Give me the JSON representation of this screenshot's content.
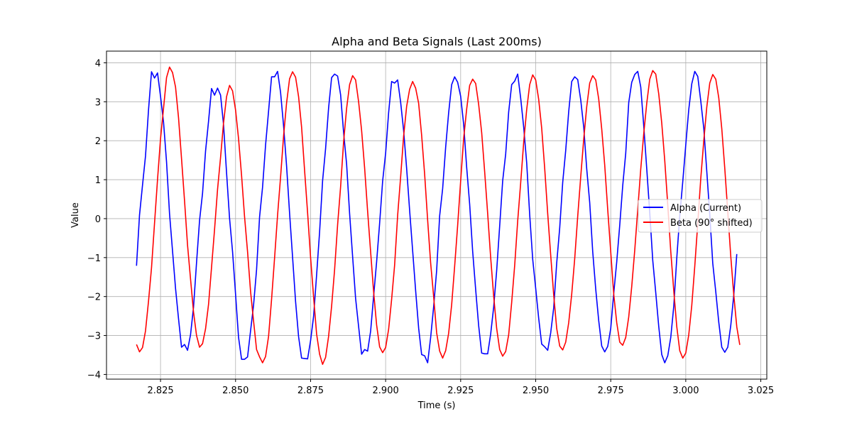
{
  "chart_data": {
    "type": "line",
    "title": "Alpha and Beta Signals (Last 200ms)",
    "xlabel": "Time (s)",
    "ylabel": "Value",
    "xlim": [
      2.807,
      3.027
    ],
    "ylim": [
      -4.12,
      4.3
    ],
    "xticks": [
      2.825,
      2.85,
      2.875,
      2.9,
      2.925,
      2.95,
      2.975,
      3.0,
      3.025
    ],
    "xtick_labels": [
      "2.825",
      "2.850",
      "2.875",
      "2.900",
      "2.925",
      "2.950",
      "2.975",
      "3.000",
      "3.025"
    ],
    "yticks": [
      -4,
      -3,
      -2,
      -1,
      0,
      1,
      2,
      3,
      4
    ],
    "ytick_labels": [
      "−4",
      "−3",
      "−2",
      "−1",
      "0",
      "1",
      "2",
      "3",
      "4"
    ],
    "grid": true,
    "legend_position": "center-right",
    "x_start": 2.817,
    "x_step": 0.001,
    "series": [
      {
        "name": "Alpha (Current)",
        "color": "#0000ff",
        "values": [
          -1.21,
          0.09,
          0.86,
          1.61,
          2.79,
          3.77,
          3.61,
          3.74,
          3.14,
          2.48,
          1.46,
          0.13,
          -0.83,
          -1.79,
          -2.57,
          -3.3,
          -3.23,
          -3.38,
          -2.98,
          -2.27,
          -1.13,
          -0.05,
          0.65,
          1.73,
          2.5,
          3.34,
          3.17,
          3.35,
          3.17,
          2.41,
          1.18,
          0.01,
          -0.85,
          -1.94,
          -3.05,
          -3.61,
          -3.61,
          -3.55,
          -2.88,
          -2.22,
          -1.31,
          0.04,
          0.81,
          1.89,
          2.76,
          3.64,
          3.64,
          3.78,
          3.24,
          2.38,
          1.35,
          0.14,
          -0.99,
          -2.13,
          -3.03,
          -3.58,
          -3.59,
          -3.6,
          -3.13,
          -2.51,
          -1.45,
          -0.34,
          0.97,
          1.8,
          2.84,
          3.62,
          3.71,
          3.66,
          3.18,
          2.21,
          1.4,
          0.13,
          -0.97,
          -2.05,
          -2.77,
          -3.48,
          -3.36,
          -3.4,
          -2.89,
          -1.99,
          -1.11,
          -0.12,
          0.96,
          1.68,
          2.72,
          3.52,
          3.48,
          3.56,
          2.99,
          2.26,
          1.29,
          0.21,
          -0.82,
          -1.85,
          -2.81,
          -3.49,
          -3.52,
          -3.7,
          -3.05,
          -2.26,
          -1.33,
          0.07,
          0.77,
          1.83,
          2.72,
          3.44,
          3.64,
          3.5,
          3.14,
          2.42,
          1.32,
          0.37,
          -0.84,
          -1.82,
          -2.75,
          -3.45,
          -3.47,
          -3.47,
          -2.96,
          -2.27,
          -1.33,
          -0.19,
          0.97,
          1.66,
          2.74,
          3.44,
          3.53,
          3.71,
          3.09,
          2.35,
          1.43,
          0.1,
          -1.04,
          -1.79,
          -2.56,
          -3.22,
          -3.29,
          -3.38,
          -2.93,
          -2.29,
          -1.14,
          -0.24,
          0.93,
          1.75,
          2.75,
          3.52,
          3.64,
          3.57,
          3.05,
          2.35,
          1.28,
          0.41,
          -0.85,
          -1.81,
          -2.62,
          -3.27,
          -3.42,
          -3.28,
          -2.82,
          -1.92,
          -1.11,
          -0.17,
          0.85,
          1.68,
          2.98,
          3.5,
          3.7,
          3.78,
          3.38,
          2.38,
          1.28,
          0.15,
          -1.07,
          -1.9,
          -2.77,
          -3.49,
          -3.7,
          -3.52,
          -3.05,
          -2.25,
          -1.02,
          0.07,
          0.95,
          1.89,
          2.8,
          3.46,
          3.78,
          3.65,
          3.02,
          2.32,
          1.22,
          0.1,
          -1.15,
          -1.88,
          -2.66,
          -3.3,
          -3.43,
          -3.3,
          -2.74,
          -1.96,
          -0.91
        ]
      },
      {
        "name": "Beta (90° shifted)",
        "color": "#ff0000",
        "values": [
          -3.23,
          -3.42,
          -3.31,
          -2.88,
          -2.12,
          -1.26,
          -0.12,
          1.0,
          2.05,
          2.83,
          3.62,
          3.89,
          3.75,
          3.38,
          2.59,
          1.54,
          0.46,
          -0.68,
          -1.55,
          -2.4,
          -3.0,
          -3.3,
          -3.21,
          -2.83,
          -2.2,
          -1.25,
          -0.28,
          0.75,
          1.57,
          2.46,
          3.13,
          3.42,
          3.28,
          2.79,
          2.05,
          1.11,
          0.05,
          -0.85,
          -1.87,
          -2.63,
          -3.36,
          -3.55,
          -3.7,
          -3.54,
          -3.02,
          -2.07,
          -1.01,
          0.09,
          1.07,
          2.12,
          2.97,
          3.59,
          3.77,
          3.63,
          3.13,
          2.35,
          1.24,
          0.15,
          -1.0,
          -2.01,
          -2.96,
          -3.48,
          -3.74,
          -3.56,
          -3.02,
          -2.25,
          -1.31,
          -0.16,
          0.82,
          1.97,
          2.83,
          3.44,
          3.67,
          3.56,
          3.0,
          2.26,
          1.3,
          0.19,
          -0.85,
          -1.88,
          -2.73,
          -3.29,
          -3.44,
          -3.31,
          -2.84,
          -2.07,
          -1.19,
          0.08,
          1.07,
          2.12,
          2.88,
          3.32,
          3.52,
          3.35,
          2.96,
          2.14,
          1.14,
          -0.04,
          -1.14,
          -2.0,
          -2.93,
          -3.4,
          -3.58,
          -3.39,
          -2.94,
          -2.21,
          -1.22,
          -0.17,
          0.97,
          2.06,
          2.81,
          3.42,
          3.58,
          3.47,
          2.93,
          2.21,
          1.2,
          0.13,
          -1.0,
          -1.99,
          -2.82,
          -3.36,
          -3.53,
          -3.41,
          -2.98,
          -2.15,
          -1.2,
          -0.06,
          0.92,
          1.96,
          2.8,
          3.44,
          3.69,
          3.56,
          3.06,
          2.32,
          1.29,
          0.13,
          -0.94,
          -1.96,
          -2.82,
          -3.27,
          -3.37,
          -3.17,
          -2.67,
          -1.94,
          -1.03,
          0.06,
          1.07,
          2.04,
          2.87,
          3.48,
          3.67,
          3.56,
          3.07,
          2.3,
          1.37,
          0.23,
          -0.85,
          -1.94,
          -2.67,
          -3.17,
          -3.25,
          -3.05,
          -2.52,
          -1.74,
          -0.81,
          0.23,
          1.27,
          2.18,
          2.96,
          3.58,
          3.8,
          3.71,
          3.2,
          2.45,
          1.49,
          0.35,
          -0.84,
          -1.85,
          -2.77,
          -3.39,
          -3.58,
          -3.45,
          -2.98,
          -2.23,
          -1.22,
          -0.12,
          1.03,
          2.0,
          2.86,
          3.48,
          3.7,
          3.58,
          3.1,
          2.31,
          1.29,
          0.17,
          -0.97,
          -1.96,
          -2.78,
          -3.24
        ]
      }
    ]
  }
}
